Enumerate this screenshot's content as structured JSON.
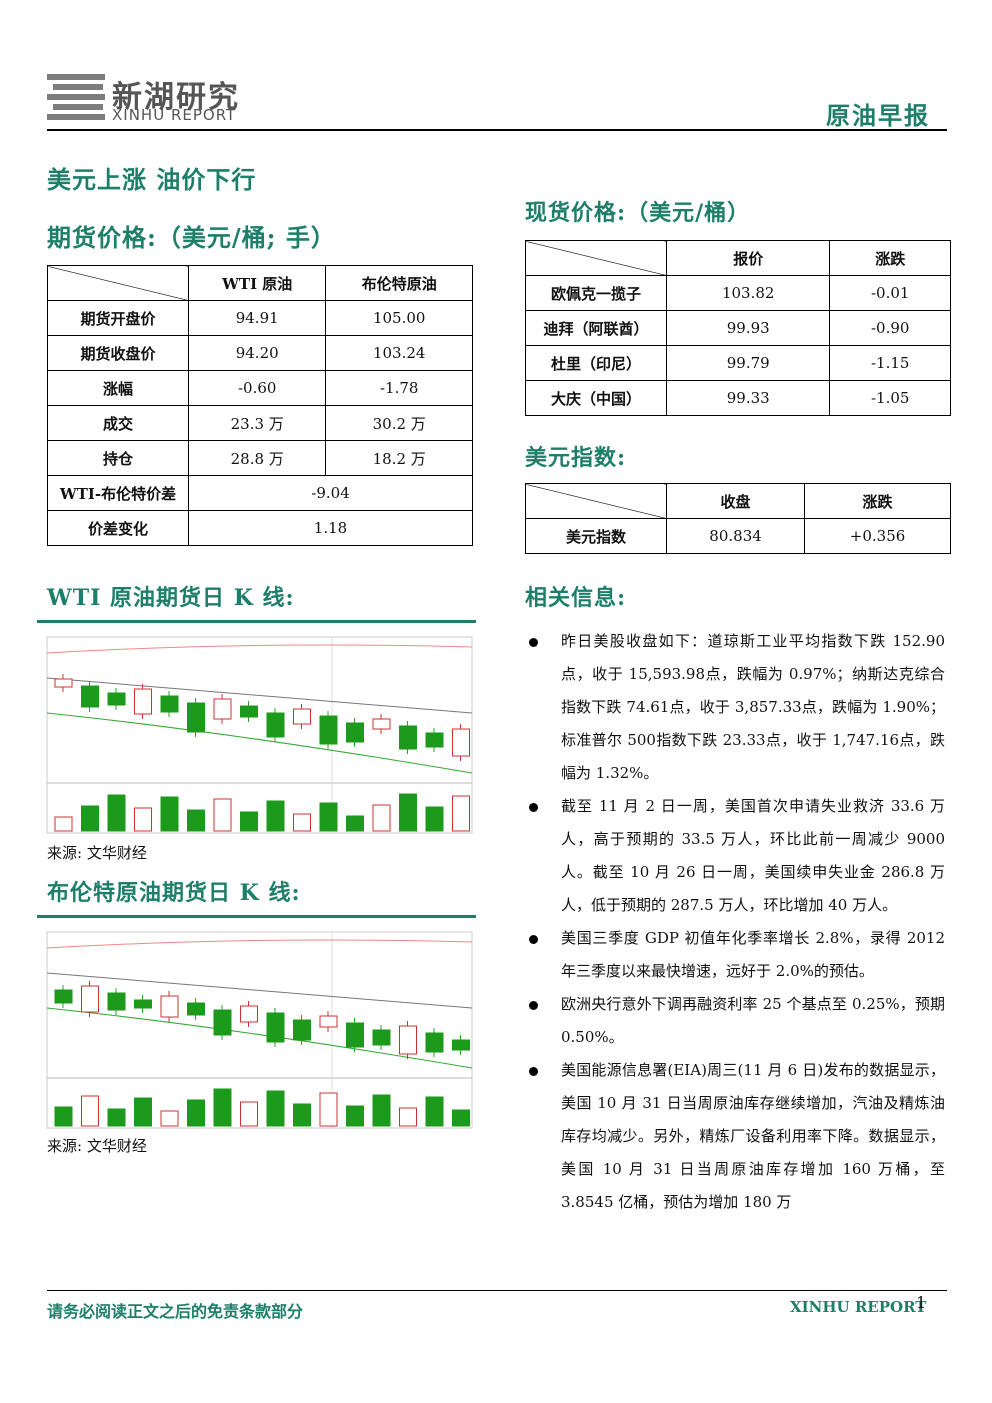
{
  "header": {
    "brand": "新湖研究",
    "brand_en": "XINHU REPORT",
    "report_type": "原油早报"
  },
  "headline": "美元上涨 油价下行",
  "futures": {
    "title": "期货价格:（美元/桶; 手）",
    "columns": [
      "WTI 原油",
      "布伦特原油"
    ],
    "rows": [
      [
        "期货开盘价",
        "94.91",
        "105.00"
      ],
      [
        "期货收盘价",
        "94.20",
        "103.24"
      ],
      [
        "涨幅",
        "-0.60",
        "-1.78"
      ],
      [
        "成交",
        "23.3 万",
        "30.2 万"
      ],
      [
        "持仓",
        "28.8 万",
        "18.2 万"
      ]
    ],
    "spread_rows": [
      [
        "WTI-布伦特价差",
        "-9.04"
      ],
      [
        "价差变化",
        "1.18"
      ]
    ]
  },
  "wti_chart": {
    "title": "WTI 原油期货日 K 线:",
    "source": "来源: 文华财经"
  },
  "brent_chart": {
    "title": "布伦特原油期货日 K 线:",
    "source": "来源: 文华财经"
  },
  "spot": {
    "title": "现货价格:（美元/桶）",
    "columns": [
      "报价",
      "涨跌"
    ],
    "rows": [
      [
        "欧佩克一揽子",
        "103.82",
        "-0.01"
      ],
      [
        "迪拜（阿联酋）",
        "99.93",
        "-0.90"
      ],
      [
        "杜里（印尼）",
        "99.79",
        "-1.15"
      ],
      [
        "大庆（中国）",
        "99.33",
        "-1.05"
      ]
    ]
  },
  "usd": {
    "title": "美元指数:",
    "columns": [
      "收盘",
      "涨跌"
    ],
    "rows": [
      [
        "美元指数",
        "80.834",
        "+0.356"
      ]
    ]
  },
  "news": {
    "title": "相关信息:",
    "items": [
      "昨日美股收盘如下：道琼斯工业平均指数下跌 152.90点，收于 15,593.98点，跌幅为 0.97%；纳斯达克综合指数下跌 74.61点，收于 3,857.33点，跌幅为 1.90%；标准普尔 500指数下跌 23.33点，收于 1,747.16点，跌幅为 1.32%。",
      "截至 11 月 2 日一周，美国首次申请失业救济 33.6 万人，高于预期的 33.5 万人，环比此前一周减少 9000 人。截至 10 月 26 日一周，美国续申失业金 286.8 万人，低于预期的 287.5 万人，环比增加 40 万人。",
      "美国三季度 GDP 初值年化季率增长 2.8%，录得 2012 年三季度以来最快增速，远好于 2.0%的预估。",
      "欧洲央行意外下调再融资利率 25 个基点至 0.25%，预期 0.50%。",
      "美国能源信息署(EIA)周三(11 月 6 日)发布的数据显示，美国 10 月 31 日当周原油库存继续增加，汽油及精炼油库存均减少。另外，精炼厂设备利用率下降。数据显示，美国 10 月 31 日当周原油库存增加 160 万桶，至 3.8545 亿桶，预估为增加 180 万"
    ]
  },
  "footer": {
    "disclaimer": "请务必阅读正文之后的免责条款部分",
    "brand": "XINHU REPORT",
    "page": "1"
  }
}
